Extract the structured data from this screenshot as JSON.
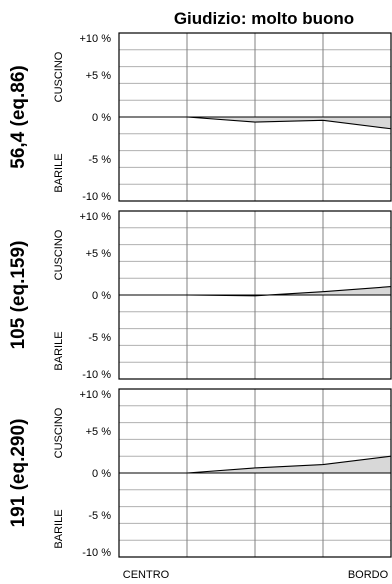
{
  "chart_data": {
    "type": "line",
    "title": "Giudizio: molto buono",
    "x_categories": [
      "CENTRO",
      "BORDO"
    ],
    "y_ticks": [
      "+10 %",
      "+5 %",
      "0 %",
      "-5 %",
      "-10 %"
    ],
    "ylim": [
      -10,
      10
    ],
    "y_top_label": "CUSCINO",
    "y_bottom_label": "BARILE",
    "grid": true,
    "panels": [
      {
        "label": "56,4 (eq.86)",
        "x": [
          0,
          0.25,
          0.5,
          0.75,
          1.0
        ],
        "y": [
          0,
          0,
          -0.6,
          -0.4,
          -1.4
        ]
      },
      {
        "label": "105 (eq.159)",
        "x": [
          0,
          0.25,
          0.5,
          0.75,
          1.0
        ],
        "y": [
          0,
          0,
          -0.1,
          0.4,
          1.0
        ]
      },
      {
        "label": "191 (eq.290)",
        "x": [
          0,
          0.25,
          0.5,
          0.75,
          1.0
        ],
        "y": [
          0,
          0,
          0.6,
          1.0,
          2.0
        ]
      }
    ]
  }
}
